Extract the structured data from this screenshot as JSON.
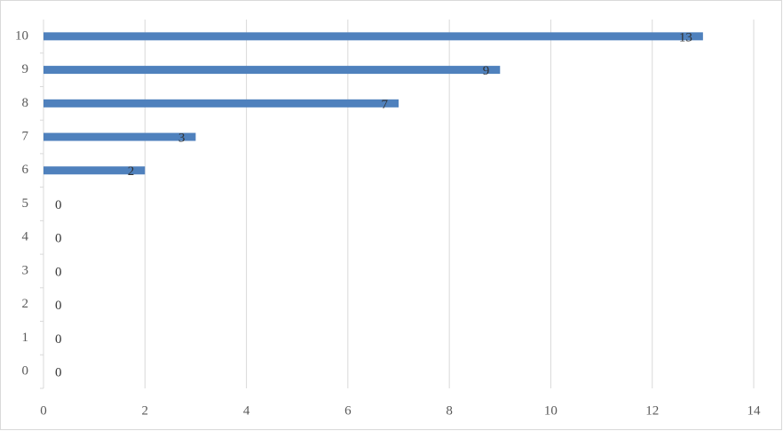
{
  "chart_data": {
    "type": "hbar",
    "categories": [
      "0",
      "1",
      "2",
      "3",
      "4",
      "5",
      "6",
      "7",
      "8",
      "9",
      "10"
    ],
    "values": [
      0,
      0,
      0,
      0,
      0,
      0,
      2,
      3,
      7,
      9,
      13
    ],
    "color": "#4f81bd",
    "xlim": [
      0,
      14
    ],
    "xticks": [
      0,
      2,
      4,
      6,
      8,
      10,
      12,
      14
    ],
    "grid": true
  }
}
